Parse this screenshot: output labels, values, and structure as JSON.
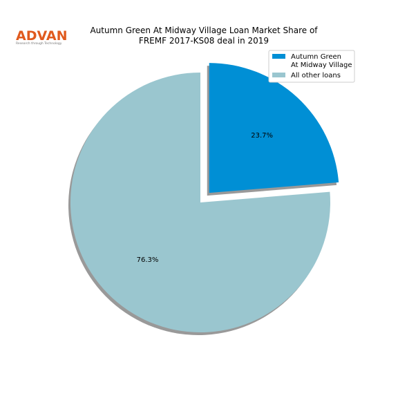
{
  "logo": {
    "name": "ADVAN",
    "tagline": "Research through Technology"
  },
  "chart_data": {
    "type": "pie",
    "title": "Autumn Green At Midway Village Loan Market Share of\nFREMF 2017-KS08 deal in 2019",
    "categories": [
      "Autumn Green\nAt Midway Village",
      "All other loans"
    ],
    "values": [
      23.7,
      76.3
    ],
    "value_labels": [
      "23.7%",
      "76.3%"
    ],
    "colors": [
      "#008fd5",
      "#9ac6cf"
    ],
    "explode": [
      0.1,
      0
    ],
    "start_angle": 90,
    "shadow": true,
    "legend": "upper right"
  }
}
